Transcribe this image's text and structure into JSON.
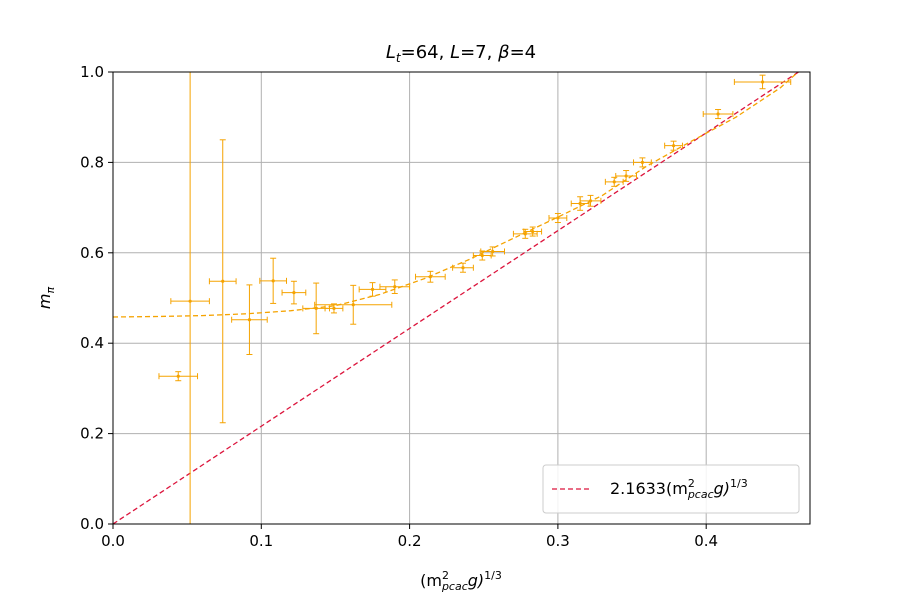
{
  "chart_data": {
    "type": "scatter",
    "title": {
      "l": "L",
      "lsub": "t",
      "rest1": "=64, ",
      "l2": "L",
      "rest2": "=7, ",
      "beta": "β",
      "rest3": "=4"
    },
    "xlabel": {
      "open": "(m",
      "sup": "2",
      "sub": "pcac",
      "g": "g)",
      "exp": "1/3"
    },
    "ylabel": {
      "m": "m",
      "sub": "π"
    },
    "xlim": [
      0.0,
      0.47
    ],
    "ylim": [
      0.0,
      1.0
    ],
    "xticks": [
      "0.0",
      "0.1",
      "0.2",
      "0.3",
      "0.4"
    ],
    "xtick_values": [
      0.0,
      0.1,
      0.2,
      0.3,
      0.4
    ],
    "yticks": [
      "0.0",
      "0.2",
      "0.4",
      "0.6",
      "0.8",
      "1.0"
    ],
    "ytick_values": [
      0.0,
      0.2,
      0.4,
      0.6,
      0.8,
      1.0
    ],
    "grid": true,
    "legend_position": "bottom-right",
    "colors": {
      "data": "#f5a300",
      "line": "#dc143c",
      "grid": "#b0b0b0"
    },
    "series": [
      {
        "type": "errorbar",
        "points": [
          {
            "x": 0.044,
            "y": 0.327,
            "xerr": 0.013,
            "yerr": 0.01
          },
          {
            "x": 0.052,
            "y": 0.493,
            "xerr": 0.013,
            "yerr": 0.65
          },
          {
            "x": 0.074,
            "y": 0.537,
            "xerr": 0.009,
            "yerr": 0.313
          },
          {
            "x": 0.092,
            "y": 0.452,
            "xerr": 0.012,
            "yerr": 0.077
          },
          {
            "x": 0.108,
            "y": 0.538,
            "xerr": 0.009,
            "yerr": 0.05
          },
          {
            "x": 0.122,
            "y": 0.512,
            "xerr": 0.008,
            "yerr": 0.025
          },
          {
            "x": 0.137,
            "y": 0.477,
            "xerr": 0.009,
            "yerr": 0.056
          },
          {
            "x": 0.149,
            "y": 0.477,
            "xerr": 0.006,
            "yerr": 0.01
          },
          {
            "x": 0.162,
            "y": 0.485,
            "xerr": 0.026,
            "yerr": 0.043
          },
          {
            "x": 0.175,
            "y": 0.519,
            "xerr": 0.009,
            "yerr": 0.015
          },
          {
            "x": 0.19,
            "y": 0.525,
            "xerr": 0.01,
            "yerr": 0.015
          },
          {
            "x": 0.214,
            "y": 0.547,
            "xerr": 0.01,
            "yerr": 0.012
          },
          {
            "x": 0.236,
            "y": 0.567,
            "xerr": 0.007,
            "yerr": 0.01
          },
          {
            "x": 0.249,
            "y": 0.594,
            "xerr": 0.006,
            "yerr": 0.01
          },
          {
            "x": 0.256,
            "y": 0.603,
            "xerr": 0.008,
            "yerr": 0.01
          },
          {
            "x": 0.278,
            "y": 0.642,
            "xerr": 0.008,
            "yerr": 0.01
          },
          {
            "x": 0.283,
            "y": 0.647,
            "xerr": 0.006,
            "yerr": 0.01
          },
          {
            "x": 0.3,
            "y": 0.677,
            "xerr": 0.006,
            "yerr": 0.01
          },
          {
            "x": 0.315,
            "y": 0.709,
            "xerr": 0.006,
            "yerr": 0.015
          },
          {
            "x": 0.322,
            "y": 0.715,
            "xerr": 0.007,
            "yerr": 0.012
          },
          {
            "x": 0.338,
            "y": 0.757,
            "xerr": 0.006,
            "yerr": 0.01
          },
          {
            "x": 0.346,
            "y": 0.77,
            "xerr": 0.007,
            "yerr": 0.012
          },
          {
            "x": 0.357,
            "y": 0.8,
            "xerr": 0.006,
            "yerr": 0.01
          },
          {
            "x": 0.378,
            "y": 0.837,
            "xerr": 0.006,
            "yerr": 0.01
          },
          {
            "x": 0.408,
            "y": 0.907,
            "xerr": 0.01,
            "yerr": 0.01
          },
          {
            "x": 0.438,
            "y": 0.978,
            "xerr": 0.019,
            "yerr": 0.015
          }
        ]
      },
      {
        "type": "fit-curve",
        "style": "dashed",
        "x": [
          0.0,
          0.03,
          0.06,
          0.09,
          0.12,
          0.15,
          0.18,
          0.21,
          0.24,
          0.27,
          0.3,
          0.33,
          0.36,
          0.39,
          0.42,
          0.45,
          0.462
        ],
        "y": [
          0.458,
          0.459,
          0.461,
          0.465,
          0.472,
          0.483,
          0.508,
          0.543,
          0.585,
          0.632,
          0.679,
          0.727,
          0.792,
          0.847,
          0.9,
          0.965,
          1.0
        ]
      },
      {
        "type": "line",
        "style": "dashed",
        "name": {
          "coef": "2.1633(m",
          "sup": "2",
          "sub": "pcac",
          "g": "g)",
          "exp": "1/3"
        },
        "slope": 2.1633,
        "x": [
          0.0,
          0.47
        ]
      }
    ]
  }
}
